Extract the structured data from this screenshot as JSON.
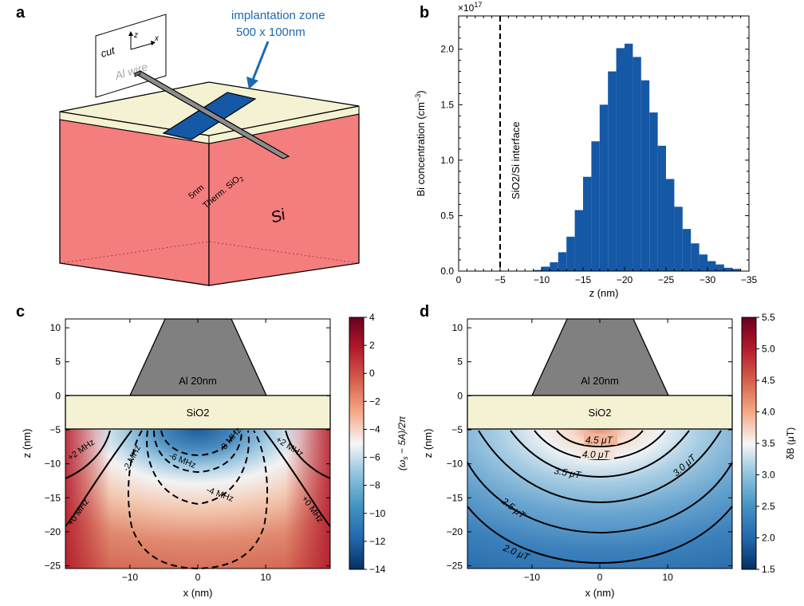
{
  "panel_letters": {
    "a": "a",
    "b": "b",
    "c": "c",
    "d": "d"
  },
  "panel_a": {
    "annotation_line1": "implantation zone",
    "annotation_line2": "500 x 100nm",
    "cut_label": "cut",
    "axis_z": "z",
    "axis_x": "x",
    "wire_label": "Al wire",
    "thickness_label": "5nm",
    "oxide_label": "Therm. SiO",
    "oxide_sub": "2",
    "substrate_label": "Si",
    "colors": {
      "oxide": "#f5f2d3",
      "silicon": "#f47d7d",
      "implant": "#1558a6",
      "wire": "#8c8c8c",
      "annotation": "#1b6ab3"
    }
  },
  "panel_b": {
    "exponent_label": "×10",
    "exponent_power": "17",
    "interface_label": "SiO2/Si interface",
    "chart_data": {
      "type": "bar",
      "xlabel": "z (nm)",
      "ylabel": "Bi concentration (cm",
      "ylabel_sup": "−3",
      "ylabel_end": ")",
      "x_ticks": [
        "0",
        "−5",
        "−10",
        "−15",
        "−20",
        "−25",
        "−30",
        "−35"
      ],
      "y_ticks": [
        "0.0",
        "0.5",
        "1.0",
        "1.5",
        "2.0"
      ],
      "xlim": [
        0,
        -35
      ],
      "ylim": [
        0,
        2.3
      ],
      "interface_z": -5,
      "bar_color": "#1558a6",
      "bin_width": 1,
      "z_bin_left": [
        -10,
        -11,
        -12,
        -13,
        -14,
        -15,
        -16,
        -17,
        -18,
        -19,
        -20,
        -21,
        -22,
        -23,
        -24,
        -25,
        -26,
        -27,
        -28,
        -29,
        -30,
        -31,
        -32,
        -33,
        -34
      ],
      "values": [
        0.01,
        0.04,
        0.08,
        0.17,
        0.31,
        0.55,
        0.85,
        1.17,
        1.5,
        1.8,
        2.01,
        2.05,
        1.93,
        1.72,
        1.43,
        1.13,
        0.83,
        0.58,
        0.38,
        0.25,
        0.15,
        0.09,
        0.06,
        0.03,
        0.02
      ]
    }
  },
  "panel_c": {
    "xlabel": "x (nm)",
    "ylabel": "z (nm)",
    "x_ticks": [
      "−10",
      "0",
      "10"
    ],
    "y_ticks": [
      "10",
      "5",
      "0",
      "−5",
      "−10",
      "−15",
      "−20",
      "−25"
    ],
    "metal_label": "Al 20nm",
    "oxide_label": "SiO2",
    "colorbar_label": "(ω",
    "colorbar_label_sub": "s",
    "colorbar_label_rest": " − 5A)/2π",
    "colorbar_ticks": [
      "4",
      "2",
      "0",
      "−2",
      "−4",
      "−6",
      "−8",
      "−10",
      "−12",
      "−14"
    ],
    "contours": [
      "+2 MHz",
      "-2 MHz",
      "-6 MHz",
      "-8 MHz",
      "-4 MHz",
      "+0 MHz",
      "+0 MHz",
      "+2 MHz"
    ]
  },
  "panel_d": {
    "xlabel": "x (nm)",
    "ylabel": "z (nm)",
    "x_ticks": [
      "−10",
      "0",
      "10"
    ],
    "y_ticks": [
      "10",
      "5",
      "0",
      "−5",
      "−10",
      "−15",
      "−20",
      "−25"
    ],
    "metal_label": "Al 20nm",
    "oxide_label": "SiO2",
    "colorbar_label": "δB (μT)",
    "colorbar_ticks": [
      "5.5",
      "5.0",
      "4.5",
      "4.0",
      "3.5",
      "3.0",
      "2.5",
      "2.0",
      "1.5"
    ],
    "contours": [
      "4.5 μT",
      "4.0 μT",
      "3.5 μT",
      "3.0 μT",
      "2.5 μT",
      "2.0 μT"
    ]
  }
}
